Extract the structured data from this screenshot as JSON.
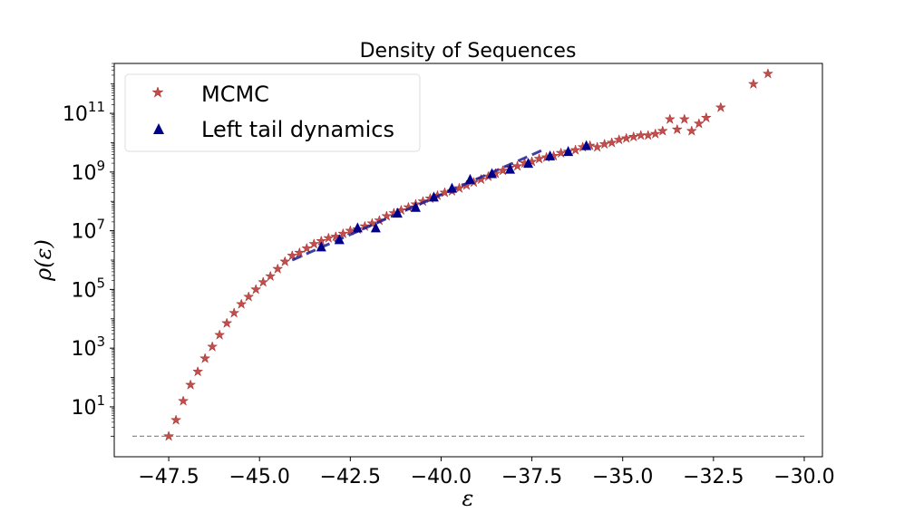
{
  "chart_data": {
    "type": "scatter",
    "title": "Density of Sequences",
    "xlabel": "ε",
    "ylabel": "ρ(ε)",
    "xlim": [
      -49.0,
      -29.5
    ],
    "ylim_log10": [
      -0.7,
      12.7
    ],
    "y_scale": "log",
    "grid": false,
    "legend_position": "top-left",
    "x_ticks": [
      -47.5,
      -45.0,
      -42.5,
      -40.0,
      -37.5,
      -35.0,
      -32.5,
      -30.0
    ],
    "x_tick_labels": [
      "−47.5",
      "−45.0",
      "−42.5",
      "−40.0",
      "−37.5",
      "−35.0",
      "−32.5",
      "−30.0"
    ],
    "y_ticks_log10": [
      1,
      3,
      5,
      7,
      9,
      11
    ],
    "y_tick_labels": [
      {
        "base": "10",
        "exp": "1"
      },
      {
        "base": "10",
        "exp": "3"
      },
      {
        "base": "10",
        "exp": "5"
      },
      {
        "base": "10",
        "exp": "7"
      },
      {
        "base": "10",
        "exp": "9"
      },
      {
        "base": "10",
        "exp": "11"
      }
    ],
    "series": [
      {
        "name": "MCMC",
        "marker": "star",
        "color": "#c0504d",
        "points": [
          [
            -47.5,
            0.0
          ],
          [
            -47.3,
            0.55
          ],
          [
            -47.1,
            1.2
          ],
          [
            -46.9,
            1.75
          ],
          [
            -46.7,
            2.2
          ],
          [
            -46.5,
            2.65
          ],
          [
            -46.3,
            3.05
          ],
          [
            -46.1,
            3.45
          ],
          [
            -45.9,
            3.85
          ],
          [
            -45.7,
            4.2
          ],
          [
            -45.5,
            4.5
          ],
          [
            -45.3,
            4.75
          ],
          [
            -45.1,
            5.0
          ],
          [
            -44.9,
            5.25
          ],
          [
            -44.7,
            5.45
          ],
          [
            -44.5,
            5.7
          ],
          [
            -44.3,
            5.95
          ],
          [
            -44.1,
            6.15
          ],
          [
            -43.9,
            6.25
          ],
          [
            -43.7,
            6.4
          ],
          [
            -43.5,
            6.55
          ],
          [
            -43.3,
            6.65
          ],
          [
            -43.1,
            6.75
          ],
          [
            -42.9,
            6.8
          ],
          [
            -42.7,
            6.9
          ],
          [
            -42.5,
            7.0
          ],
          [
            -42.3,
            7.05
          ],
          [
            -42.1,
            7.15
          ],
          [
            -41.9,
            7.25
          ],
          [
            -41.7,
            7.35
          ],
          [
            -41.5,
            7.5
          ],
          [
            -41.3,
            7.6
          ],
          [
            -41.1,
            7.7
          ],
          [
            -40.9,
            7.8
          ],
          [
            -40.7,
            7.9
          ],
          [
            -40.5,
            8.0
          ],
          [
            -40.3,
            8.1
          ],
          [
            -40.1,
            8.2
          ],
          [
            -39.9,
            8.3
          ],
          [
            -39.7,
            8.35
          ],
          [
            -39.5,
            8.45
          ],
          [
            -39.3,
            8.55
          ],
          [
            -39.1,
            8.65
          ],
          [
            -38.9,
            8.75
          ],
          [
            -38.7,
            8.85
          ],
          [
            -38.5,
            8.95
          ],
          [
            -38.3,
            9.05
          ],
          [
            -38.1,
            9.15
          ],
          [
            -37.9,
            9.2
          ],
          [
            -37.7,
            9.3
          ],
          [
            -37.5,
            9.35
          ],
          [
            -37.3,
            9.45
          ],
          [
            -37.1,
            9.5
          ],
          [
            -36.9,
            9.55
          ],
          [
            -36.7,
            9.65
          ],
          [
            -36.5,
            9.7
          ],
          [
            -36.3,
            9.75
          ],
          [
            -36.1,
            9.85
          ],
          [
            -35.9,
            9.9
          ],
          [
            -35.7,
            9.85
          ],
          [
            -35.5,
            9.95
          ],
          [
            -35.3,
            10.0
          ],
          [
            -35.1,
            10.1
          ],
          [
            -34.9,
            10.15
          ],
          [
            -34.7,
            10.2
          ],
          [
            -34.5,
            10.25
          ],
          [
            -34.3,
            10.25
          ],
          [
            -34.1,
            10.3
          ],
          [
            -33.9,
            10.4
          ],
          [
            -33.7,
            10.8
          ],
          [
            -33.5,
            10.45
          ],
          [
            -33.3,
            10.8
          ],
          [
            -33.1,
            10.4
          ],
          [
            -32.9,
            10.65
          ],
          [
            -32.7,
            10.85
          ],
          [
            -32.3,
            11.2
          ],
          [
            -31.4,
            12.0
          ],
          [
            -31.0,
            12.35
          ]
        ]
      },
      {
        "name": "Left tail dynamics",
        "marker": "triangle",
        "color": "#00008b",
        "points": [
          [
            -43.3,
            6.45
          ],
          [
            -42.8,
            6.7
          ],
          [
            -42.3,
            7.1
          ],
          [
            -41.8,
            7.1
          ],
          [
            -41.2,
            7.6
          ],
          [
            -40.7,
            7.8
          ],
          [
            -40.2,
            8.15
          ],
          [
            -39.7,
            8.45
          ],
          [
            -39.2,
            8.75
          ],
          [
            -38.6,
            8.95
          ],
          [
            -38.1,
            9.1
          ],
          [
            -37.6,
            9.3
          ],
          [
            -37.0,
            9.55
          ],
          [
            -36.5,
            9.7
          ],
          [
            -36.0,
            9.9
          ]
        ]
      }
    ],
    "fit_line": {
      "color": "#1f1f8f",
      "points": [
        [
          -44.1,
          6.0
        ],
        [
          -37.2,
          9.75
        ]
      ]
    },
    "baseline": {
      "color": "#808080",
      "y_log10": 0.0,
      "x_range": [
        -48.5,
        -30.0
      ]
    }
  }
}
